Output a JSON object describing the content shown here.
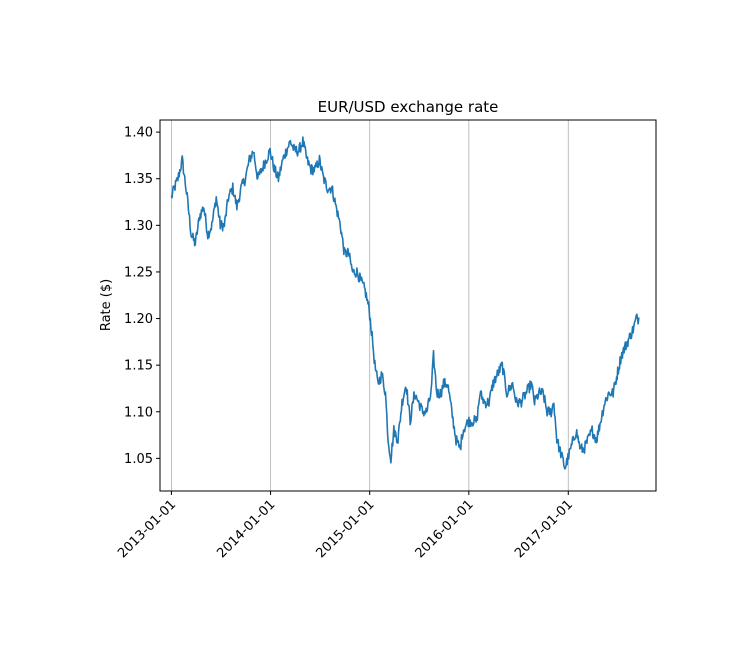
{
  "chart_data": {
    "type": "line",
    "title": "EUR/USD exchange rate",
    "xlabel": "",
    "ylabel": "Rate ($)",
    "x_range": [
      "2012-11-20",
      "2017-11-20"
    ],
    "ylim": [
      1.015,
      1.413
    ],
    "x_ticks": [
      "2013-01-01",
      "2014-01-01",
      "2015-01-01",
      "2016-01-01",
      "2017-01-01"
    ],
    "y_ticks": [
      1.05,
      1.1,
      1.15,
      1.2,
      1.25,
      1.3,
      1.35,
      1.4
    ],
    "y_tick_labels": [
      "1.05",
      "1.10",
      "1.15",
      "1.20",
      "1.25",
      "1.30",
      "1.35",
      "1.40"
    ],
    "grid": "vertical gridlines at x ticks",
    "legend": "none",
    "line_color": "#1f77b4",
    "series": [
      {
        "x": [
          "2013-01-01",
          "2013-01-12",
          "2013-01-25",
          "2013-02-10",
          "2013-02-28",
          "2013-03-15",
          "2013-03-30",
          "2013-04-15",
          "2013-04-30",
          "2013-05-15",
          "2013-05-30",
          "2013-06-15",
          "2013-06-30",
          "2013-07-15",
          "2013-07-30",
          "2013-08-15",
          "2013-08-30",
          "2013-09-15",
          "2013-09-30",
          "2013-10-15",
          "2013-10-30",
          "2013-11-15",
          "2013-11-30",
          "2013-12-15",
          "2013-12-30",
          "2014-01-15",
          "2014-01-30",
          "2014-02-15",
          "2014-02-28",
          "2014-03-15",
          "2014-03-30",
          "2014-04-15",
          "2014-04-30",
          "2014-05-15",
          "2014-05-30",
          "2014-06-15",
          "2014-06-30",
          "2014-07-15",
          "2014-07-30",
          "2014-08-15",
          "2014-08-30",
          "2014-09-15",
          "2014-09-30",
          "2014-10-15",
          "2014-10-30",
          "2014-11-15",
          "2014-11-30",
          "2014-12-15",
          "2014-12-30",
          "2015-01-10",
          "2015-01-20",
          "2015-01-31",
          "2015-02-15",
          "2015-02-28",
          "2015-03-10",
          "2015-03-20",
          "2015-03-31",
          "2015-04-15",
          "2015-04-30",
          "2015-05-15",
          "2015-05-30",
          "2015-06-15",
          "2015-06-30",
          "2015-07-15",
          "2015-07-30",
          "2015-08-15",
          "2015-08-24",
          "2015-09-05",
          "2015-09-20",
          "2015-09-30",
          "2015-10-15",
          "2015-10-30",
          "2015-11-15",
          "2015-11-30",
          "2015-12-10",
          "2015-12-30",
          "2016-01-15",
          "2016-01-30",
          "2016-02-11",
          "2016-02-28",
          "2016-03-15",
          "2016-03-30",
          "2016-04-15",
          "2016-05-03",
          "2016-05-20",
          "2016-06-10",
          "2016-06-24",
          "2016-07-10",
          "2016-07-30",
          "2016-08-18",
          "2016-08-30",
          "2016-09-15",
          "2016-09-30",
          "2016-10-15",
          "2016-10-30",
          "2016-11-09",
          "2016-11-20",
          "2016-11-30",
          "2016-12-20",
          "2016-12-31",
          "2017-01-10",
          "2017-01-30",
          "2017-02-15",
          "2017-02-28",
          "2017-03-15",
          "2017-03-30",
          "2017-04-15",
          "2017-04-30",
          "2017-05-15",
          "2017-05-30",
          "2017-06-15",
          "2017-06-30",
          "2017-07-15",
          "2017-07-30",
          "2017-08-15",
          "2017-08-30",
          "2017-09-08",
          "2017-09-20"
        ],
        "values": [
          1.33,
          1.34,
          1.35,
          1.37,
          1.33,
          1.29,
          1.28,
          1.31,
          1.32,
          1.29,
          1.3,
          1.33,
          1.3,
          1.3,
          1.33,
          1.34,
          1.32,
          1.34,
          1.35,
          1.37,
          1.38,
          1.35,
          1.36,
          1.37,
          1.38,
          1.36,
          1.35,
          1.37,
          1.38,
          1.39,
          1.38,
          1.38,
          1.39,
          1.37,
          1.36,
          1.36,
          1.37,
          1.35,
          1.34,
          1.34,
          1.32,
          1.3,
          1.27,
          1.27,
          1.25,
          1.25,
          1.24,
          1.23,
          1.21,
          1.18,
          1.15,
          1.13,
          1.14,
          1.12,
          1.07,
          1.05,
          1.08,
          1.07,
          1.11,
          1.13,
          1.09,
          1.12,
          1.11,
          1.1,
          1.1,
          1.12,
          1.16,
          1.12,
          1.12,
          1.13,
          1.13,
          1.1,
          1.07,
          1.06,
          1.08,
          1.09,
          1.09,
          1.09,
          1.12,
          1.11,
          1.11,
          1.13,
          1.14,
          1.15,
          1.12,
          1.13,
          1.11,
          1.11,
          1.12,
          1.13,
          1.11,
          1.12,
          1.12,
          1.1,
          1.1,
          1.11,
          1.07,
          1.06,
          1.04,
          1.05,
          1.06,
          1.08,
          1.06,
          1.06,
          1.07,
          1.08,
          1.07,
          1.09,
          1.11,
          1.12,
          1.12,
          1.14,
          1.16,
          1.17,
          1.18,
          1.19,
          1.2,
          1.2
        ]
      }
    ]
  }
}
